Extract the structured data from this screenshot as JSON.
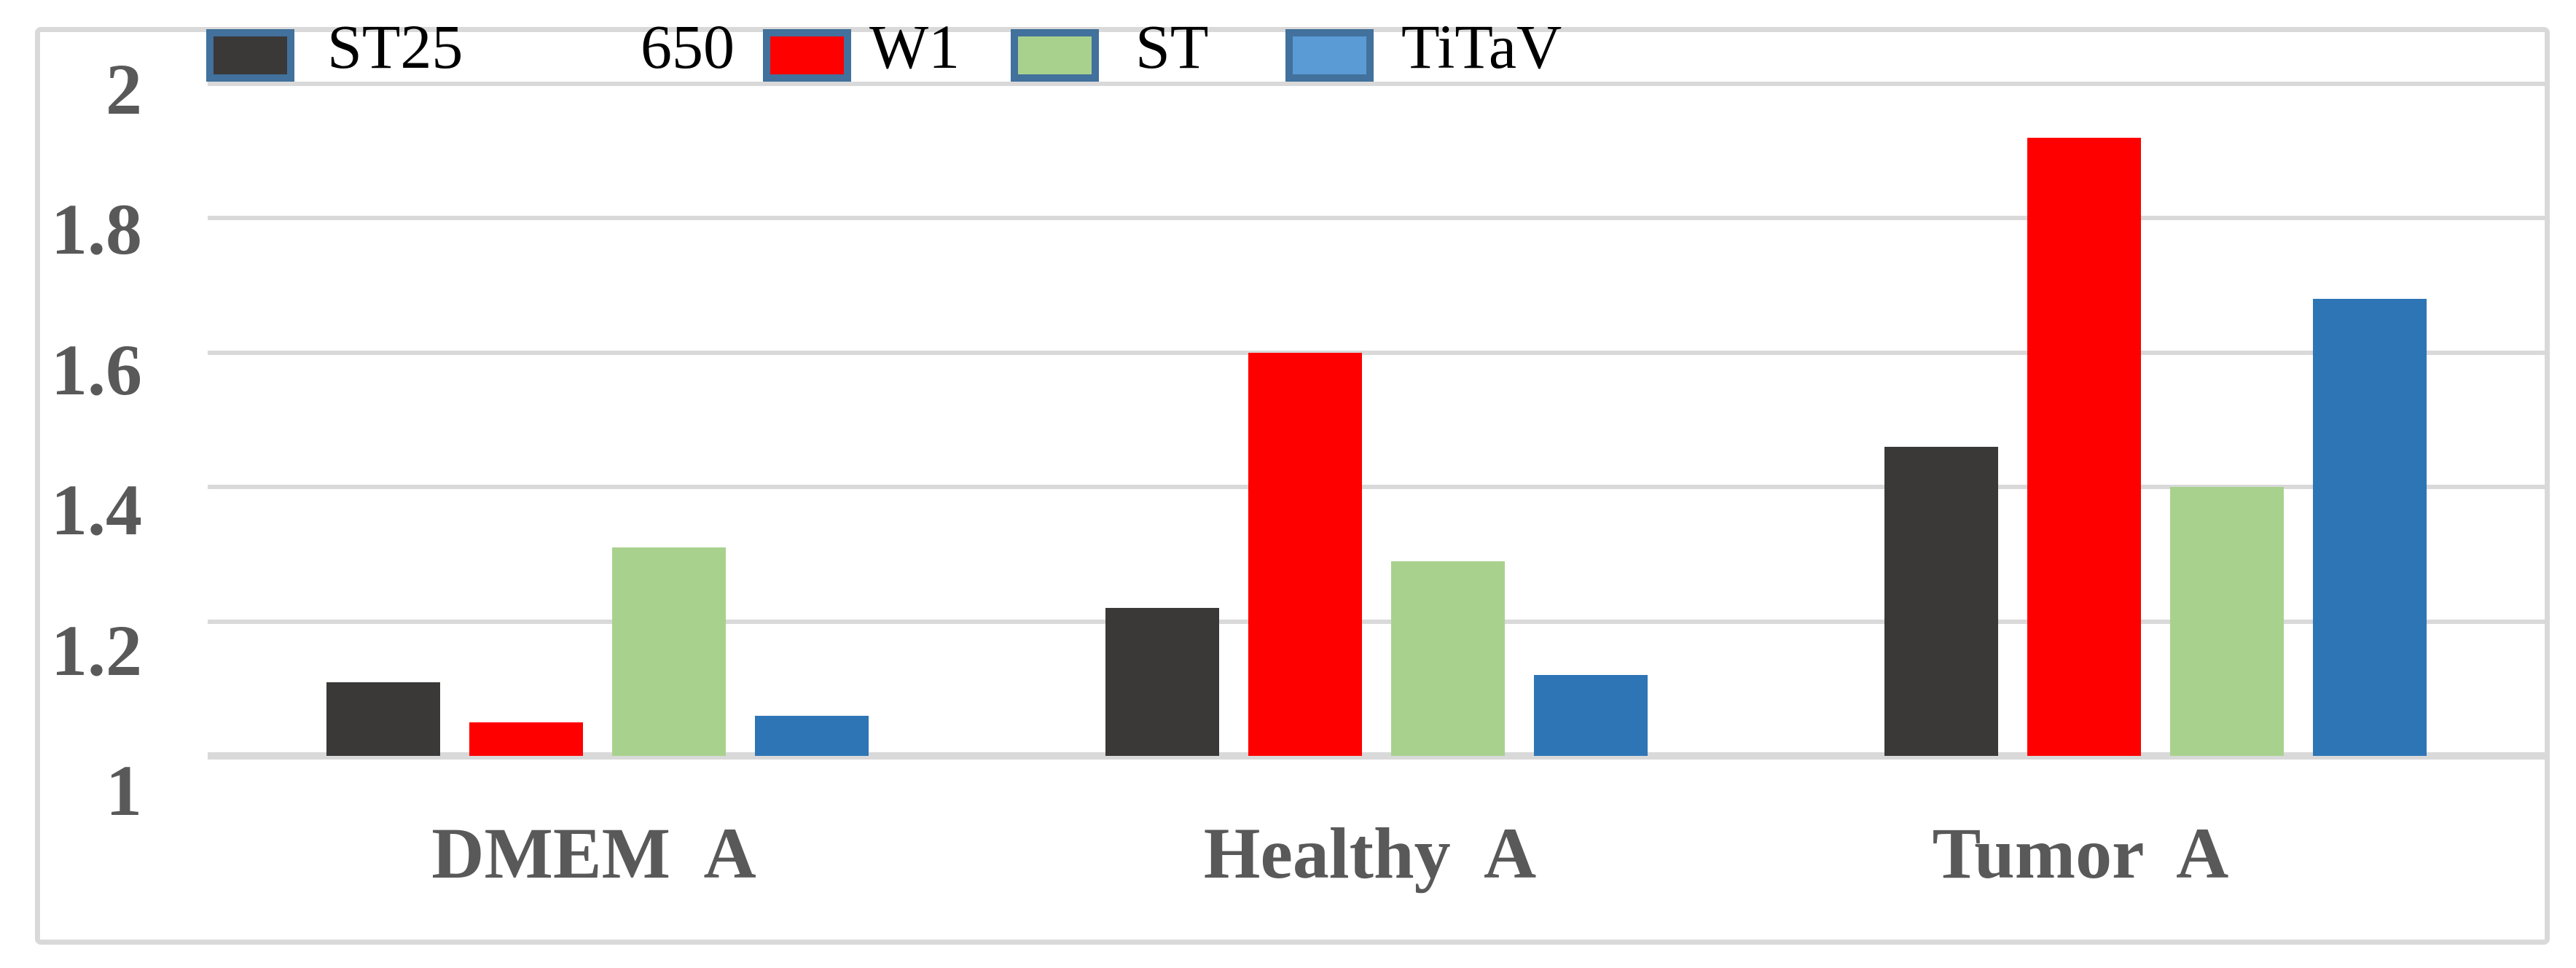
{
  "chart_data": {
    "type": "bar",
    "title": "",
    "xlabel": "",
    "ylabel": "",
    "categories": [
      "DMEM A",
      "Healthy A",
      "Tumor A"
    ],
    "series": [
      {
        "name": "ST25",
        "color": "#3B3838",
        "legend_color": "#3B3838",
        "values": [
          1.11,
          1.22,
          1.46
        ]
      },
      {
        "name": "W1",
        "color": "#FF0000",
        "legend_color": "#FF0000",
        "values": [
          1.05,
          1.6,
          1.92
        ]
      },
      {
        "name": "ST",
        "color": "#A9D18E",
        "legend_color": "#A9D18E",
        "values": [
          1.31,
          1.29,
          1.4
        ]
      },
      {
        "name": "TiTaV",
        "color": "#2E75B6",
        "legend_color": "#5B9BD5",
        "values": [
          1.06,
          1.12,
          1.68
        ]
      }
    ],
    "legend_annotation": "650",
    "legend_position": "top-left",
    "ylim": [
      1,
      2
    ],
    "yticks": [
      {
        "label": "2",
        "value": 2.0
      },
      {
        "label": "1.8",
        "value": 1.8
      },
      {
        "label": "1.6",
        "value": 1.6
      },
      {
        "label": "1.4",
        "value": 1.4
      },
      {
        "label": "1.2",
        "value": 1.2
      },
      {
        "label": "1",
        "value": 1.0
      }
    ],
    "grid": true,
    "colors": {
      "background": "#FFFFFF",
      "chart_border": "#D9D9D9",
      "gridline": "#D9D9D9",
      "baseline": "#D9D9D9",
      "axis_text": "#595959",
      "legend_text": "#000000",
      "legend_swatch_border": "#41719C"
    }
  }
}
